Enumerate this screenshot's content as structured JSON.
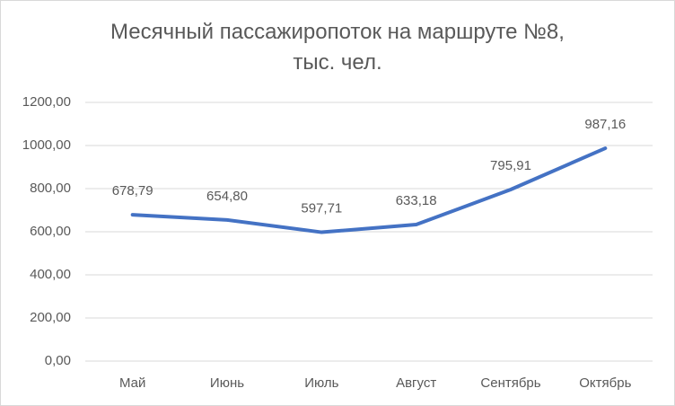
{
  "chart_data": {
    "type": "line",
    "title": "Месячный пассажиропоток на маршруте №8, тыс. чел.",
    "categories": [
      "Май",
      "Июнь",
      "Июль",
      "Август",
      "Сентябрь",
      "Октябрь"
    ],
    "values": [
      678.79,
      654.8,
      597.71,
      633.18,
      795.91,
      987.16
    ],
    "value_labels": [
      "678,79",
      "654,80",
      "597,71",
      "633,18",
      "795,91",
      "987,16"
    ],
    "color": "#4472c4",
    "ylim": [
      0,
      1200
    ],
    "yticks": [
      {
        "value": 0,
        "label": "0,00"
      },
      {
        "value": 200,
        "label": "200,00"
      },
      {
        "value": 400,
        "label": "400,00"
      },
      {
        "value": 600,
        "label": "600,00"
      },
      {
        "value": 800,
        "label": "800,00"
      },
      {
        "value": 1000,
        "label": "1000,00"
      },
      {
        "value": 1200,
        "label": "1200,00"
      }
    ],
    "grid": true
  }
}
